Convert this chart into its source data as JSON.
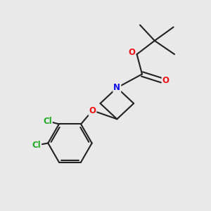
{
  "bg_color": "#e9e9e9",
  "bond_color": "#222222",
  "bond_width": 1.5,
  "atom_colors": {
    "N": "#1010ee",
    "O": "#ee1010",
    "Cl": "#22aa22",
    "C": "#222222"
  },
  "font_size": 8.5,
  "font_size_cl": 8.5,
  "figsize": [
    3.0,
    3.0
  ],
  "dpi": 100
}
